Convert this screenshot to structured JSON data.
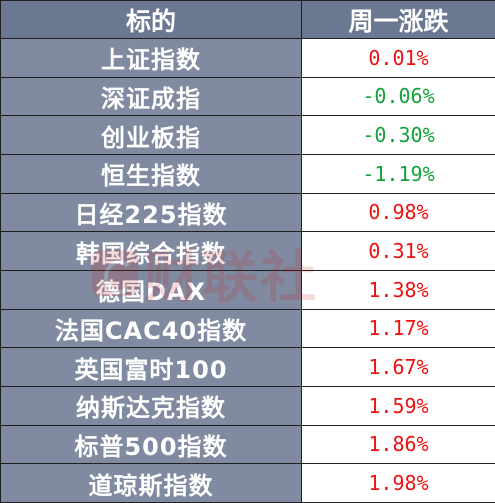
{
  "header": {
    "name_col": "标的",
    "value_col": "周一涨跌"
  },
  "rows": [
    {
      "name": "上证指数",
      "change": "0.01%",
      "direction": "up"
    },
    {
      "name": "深证成指",
      "change": "-0.06%",
      "direction": "down"
    },
    {
      "name": "创业板指",
      "change": "-0.30%",
      "direction": "down"
    },
    {
      "name": "恒生指数",
      "change": "-1.19%",
      "direction": "down"
    },
    {
      "name": "日经225指数",
      "change": "0.98%",
      "direction": "up"
    },
    {
      "name": "韩国综合指数",
      "change": "0.31%",
      "direction": "up"
    },
    {
      "name": "德国DAX",
      "change": "1.38%",
      "direction": "up"
    },
    {
      "name": "法国CAC40指数",
      "change": "1.17%",
      "direction": "up"
    },
    {
      "name": "英国富时100",
      "change": "1.67%",
      "direction": "up"
    },
    {
      "name": "纳斯达克指数",
      "change": "1.59%",
      "direction": "up"
    },
    {
      "name": "标普500指数",
      "change": "1.86%",
      "direction": "up"
    },
    {
      "name": "道琼斯指数",
      "change": "1.98%",
      "direction": "up"
    }
  ],
  "watermark": {
    "text": "财联社",
    "icon": "cailianshe-logo-icon"
  },
  "colors": {
    "header_bg": "#6b7892",
    "name_bg": "#808ba1",
    "up": "#ee1111",
    "down": "#11a33a"
  }
}
